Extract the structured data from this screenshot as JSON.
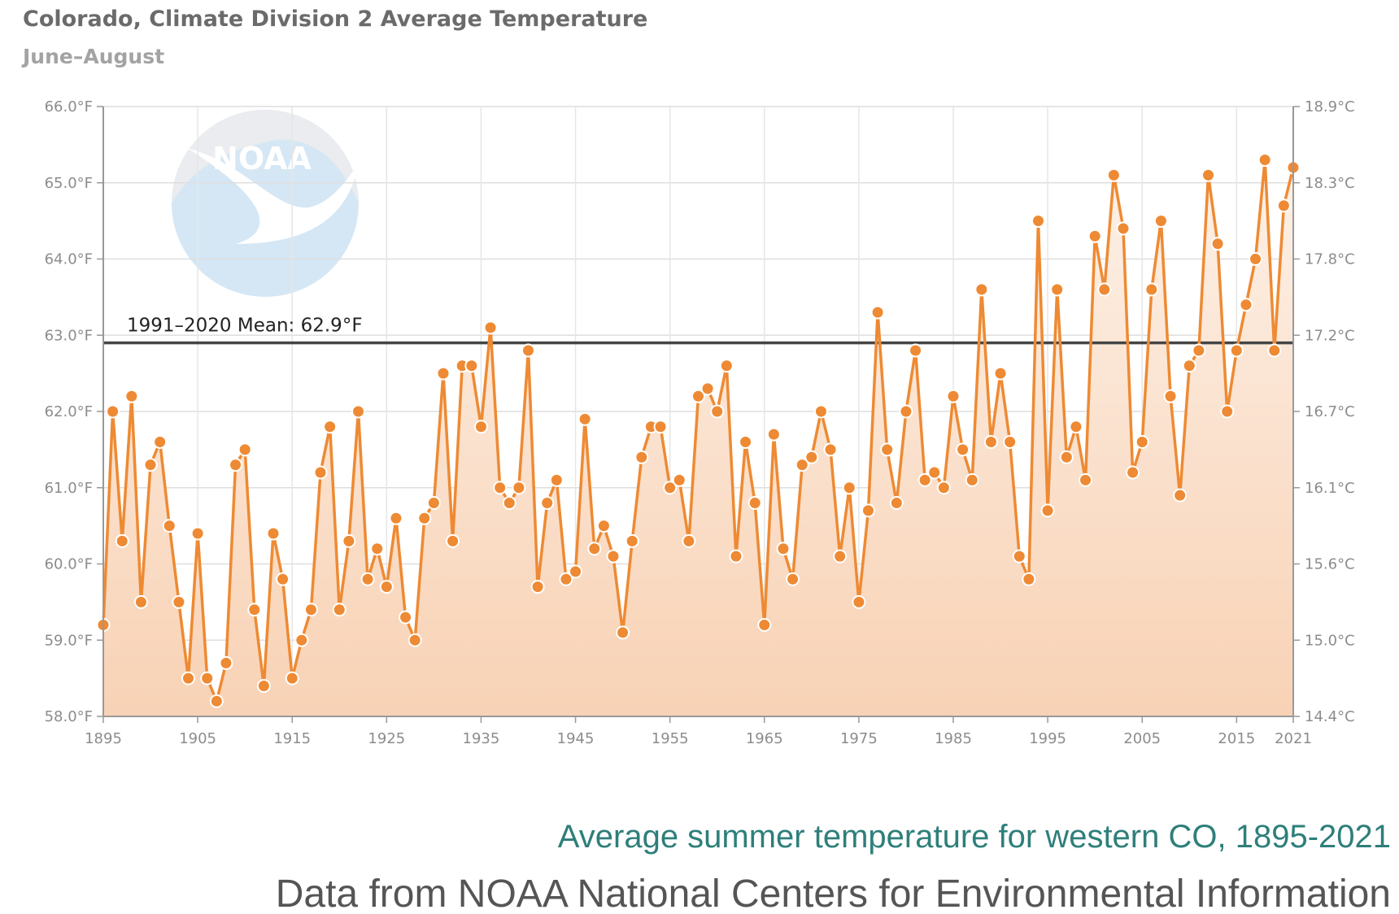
{
  "chart_data": {
    "type": "line",
    "title": "Colorado, Climate Division 2 Average Temperature",
    "subtitle": "June–August",
    "x_start": 1895,
    "x_end": 2021,
    "x_ticks": [
      1895,
      1905,
      1915,
      1925,
      1935,
      1945,
      1955,
      1965,
      1975,
      1985,
      1995,
      2005,
      2015,
      2021
    ],
    "ylim": [
      58.0,
      66.0
    ],
    "y_ticks_left": [
      "58.0°F",
      "59.0°F",
      "60.0°F",
      "61.0°F",
      "62.0°F",
      "63.0°F",
      "64.0°F",
      "65.0°F",
      "66.0°F"
    ],
    "y_ticks_right": [
      "14.4°C",
      "15.0°C",
      "15.6°C",
      "16.1°C",
      "16.7°C",
      "17.2°C",
      "17.8°C",
      "18.3°C",
      "18.9°C"
    ],
    "grid": true,
    "mean_line": {
      "value": 62.9,
      "label": "1991–2020 Mean: 62.9°F"
    },
    "series": [
      {
        "color": "#ee8a33",
        "values": [
          59.2,
          62.0,
          60.3,
          62.2,
          59.5,
          61.3,
          61.6,
          60.5,
          59.5,
          58.5,
          60.4,
          58.5,
          58.2,
          58.7,
          61.3,
          61.5,
          59.4,
          58.4,
          60.4,
          59.8,
          58.5,
          59.0,
          59.4,
          61.2,
          61.8,
          59.4,
          60.3,
          62.0,
          59.8,
          60.2,
          59.7,
          60.6,
          59.3,
          59.0,
          60.6,
          60.8,
          62.5,
          60.3,
          62.6,
          62.6,
          61.8,
          63.1,
          61.0,
          60.8,
          61.0,
          62.8,
          59.7,
          60.8,
          61.1,
          59.8,
          59.9,
          61.9,
          60.2,
          60.5,
          60.1,
          59.1,
          60.3,
          61.4,
          61.8,
          61.8,
          61.0,
          61.1,
          60.3,
          62.2,
          62.3,
          62.0,
          62.6,
          60.1,
          61.6,
          60.8,
          59.2,
          61.7,
          60.2,
          59.8,
          61.3,
          61.4,
          62.0,
          61.5,
          60.1,
          61.0,
          59.5,
          60.7,
          63.3,
          61.5,
          60.8,
          62.0,
          62.8,
          61.1,
          61.2,
          61.0,
          62.2,
          61.5,
          61.1,
          63.6,
          61.6,
          62.5,
          61.6,
          60.1,
          59.8,
          64.5,
          60.7,
          63.6,
          61.4,
          61.8,
          61.1,
          64.3,
          63.6,
          65.1,
          64.4,
          61.2,
          61.6,
          63.6,
          64.5,
          62.2,
          60.9,
          62.6,
          62.8,
          65.1,
          64.2,
          62.0,
          62.8,
          63.4,
          64.0,
          65.3,
          62.8,
          64.7,
          65.2
        ]
      }
    ]
  },
  "caption": {
    "line1": "Average summer temperature for western CO, 1895-2021",
    "line2": "Data from NOAA National Centers for Environmental Information",
    "line1_color": "#2e7f7a",
    "line2_color": "#555555"
  },
  "logo": {
    "text": "NOAA",
    "color": "#c7e0f2"
  }
}
